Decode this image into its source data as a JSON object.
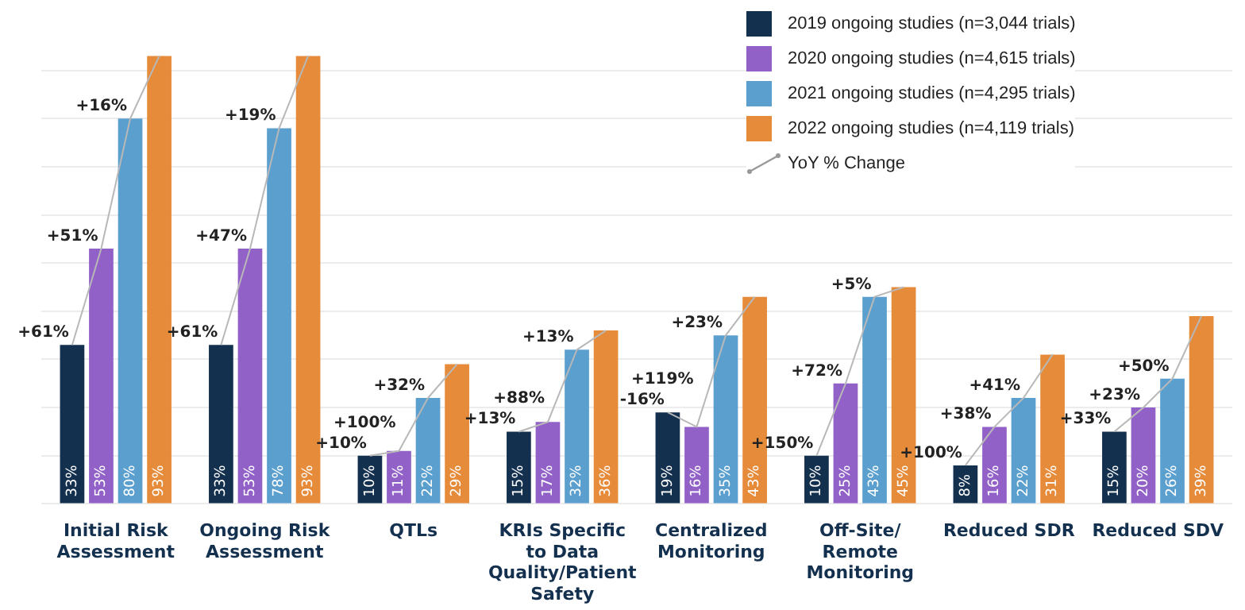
{
  "chart_data": {
    "type": "bar",
    "categories": [
      "Initial Risk Assessment",
      "Ongoing Risk Assessment",
      "QTLs",
      "KRIs Specific to Data Quality/Patient Safety",
      "Centralized Monitoring",
      "Off-Site/ Remote Monitoring",
      "Reduced SDR",
      "Reduced SDV"
    ],
    "series": [
      {
        "name": "2019 ongoing studies (n=3,044 trials)",
        "color": "#14304f",
        "values": [
          33,
          33,
          10,
          15,
          19,
          10,
          8,
          15
        ],
        "value_labels": [
          "33%",
          "33%",
          "10%",
          "15%",
          "19%",
          "10%",
          "8%",
          "15%"
        ]
      },
      {
        "name": "2020 ongoing studies (n=4,615 trials)",
        "color": "#9161c8",
        "values": [
          53,
          53,
          11,
          17,
          16,
          25,
          16,
          20
        ],
        "value_labels": [
          "53%",
          "53%",
          "11%",
          "17%",
          "16%",
          "25%",
          "16%",
          "20%"
        ]
      },
      {
        "name": "2021 ongoing studies (n=4,295 trials)",
        "color": "#5b9fcf",
        "values": [
          80,
          78,
          22,
          32,
          35,
          43,
          22,
          26
        ],
        "value_labels": [
          "80%",
          "78%",
          "22%",
          "32%",
          "35%",
          "43%",
          "22%",
          "26%"
        ]
      },
      {
        "name": "2022 ongoing studies (n=4,119 trials)",
        "color": "#e58b3a",
        "values": [
          93,
          93,
          29,
          36,
          43,
          45,
          31,
          39
        ],
        "value_labels": [
          "93%",
          "93%",
          "29%",
          "36%",
          "43%",
          "45%",
          "31%",
          "39%"
        ]
      }
    ],
    "yticks": [
      {
        "value": 0,
        "label": null
      },
      {
        "value": 10,
        "label": null
      },
      {
        "value": 20,
        "label": null
      },
      {
        "value": 30,
        "label": null
      },
      {
        "value": 40,
        "label": null
      },
      {
        "value": 50,
        "label": null
      },
      {
        "value": 60,
        "label": null
      },
      {
        "value": 70,
        "label": null
      },
      {
        "value": 80,
        "label": null
      },
      {
        "value": 90,
        "label": null
      }
    ],
    "grid": "y",
    "tick_labels": "x",
    "legend": "top right",
    "annotations": [
      "YoY % Change",
      {
        "text": "+61%",
        "x": "Initial Risk Assessment",
        "y": 33
      },
      {
        "text": "+51%",
        "x": "Initial Risk Assessment",
        "y": 53
      },
      {
        "text": "+16%",
        "x": "Initial Risk Assessment",
        "y": 80
      },
      {
        "text": "+61%",
        "x": "Ongoing Risk Assessment",
        "y": 33
      },
      {
        "text": "+47%",
        "x": "Ongoing Risk Assessment",
        "y": 53
      },
      {
        "text": "+19%",
        "x": "Ongoing Risk Assessment",
        "y": 78
      },
      {
        "text": "+10%",
        "x": "QTLs",
        "y": 10
      },
      {
        "text": "+100%",
        "x": "QTLs",
        "y": 11
      },
      {
        "text": "+32%",
        "x": "QTLs",
        "y": 22
      },
      {
        "text": "+13%",
        "x": "KRIs Specific to Data Quality/Patient Safety",
        "y": 15
      },
      {
        "text": "+88%",
        "x": "KRIs Specific to Data Quality/Patient Safety",
        "y": 17
      },
      {
        "text": "+13%",
        "x": "KRIs Specific to Data Quality/Patient Safety",
        "y": 32
      },
      {
        "text": "-16%",
        "x": "Centralized Monitoring",
        "y": 19
      },
      {
        "text": "+119%",
        "x": "Centralized Monitoring",
        "y": 16
      },
      {
        "text": "+23%",
        "x": "Centralized Monitoring",
        "y": 35
      },
      {
        "text": "+150%",
        "x": "Off-Site/ Remote Monitoring",
        "y": 10
      },
      {
        "text": "+72%",
        "x": "Off-Site/ Remote Monitoring",
        "y": 25
      },
      {
        "text": "+5%",
        "x": "Off-Site/ Remote Monitoring",
        "y": 43
      },
      {
        "text": "+100%",
        "x": "Reduced SDR",
        "y": 8
      },
      {
        "text": "+38%",
        "x": "Reduced SDR",
        "y": 16
      },
      {
        "text": "+41%",
        "x": "Reduced SDR",
        "y": 22
      },
      {
        "text": "+33%",
        "x": "Reduced SDV",
        "y": 15
      },
      {
        "text": "+23%",
        "x": "Reduced SDV",
        "y": 20
      },
      {
        "text": "+50%",
        "x": "Reduced SDV",
        "y": 26
      }
    ]
  }
}
